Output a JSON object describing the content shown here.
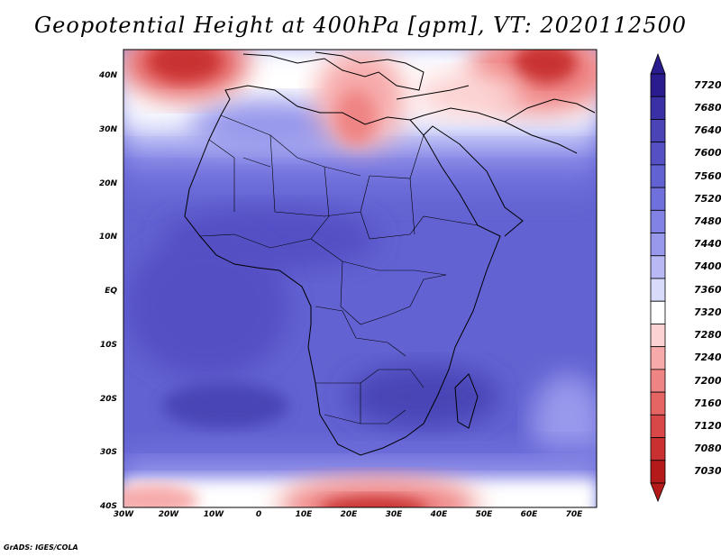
{
  "title": "Geopotential Height at 400hPa [gpm], VT: 2020112500",
  "footer": "GrADS: IGES/COLA",
  "lat_labels": [
    "40N",
    "30N",
    "20N",
    "10N",
    "EQ",
    "10S",
    "20S",
    "30S",
    "40S"
  ],
  "lon_labels": [
    "30W",
    "20W",
    "10W",
    "0",
    "10E",
    "20E",
    "30E",
    "40E",
    "50E",
    "60E",
    "70E"
  ],
  "colorbar": {
    "levels": [
      "7720",
      "7680",
      "7640",
      "7600",
      "7560",
      "7520",
      "7480",
      "7440",
      "7400",
      "7360",
      "7320",
      "7280",
      "7240",
      "7200",
      "7160",
      "7120",
      "7080",
      "7030"
    ],
    "colors": [
      "#2a1c8f",
      "#3a31a6",
      "#4a44b6",
      "#5550c4",
      "#6262d2",
      "#7070dc",
      "#8282e4",
      "#9898ec",
      "#b8b8f4",
      "#d8dcfa",
      "#ffffff",
      "#fcd2d2",
      "#f7aaaa",
      "#ef8484",
      "#e56464",
      "#d94848",
      "#c93030",
      "#b51a1a"
    ]
  }
}
